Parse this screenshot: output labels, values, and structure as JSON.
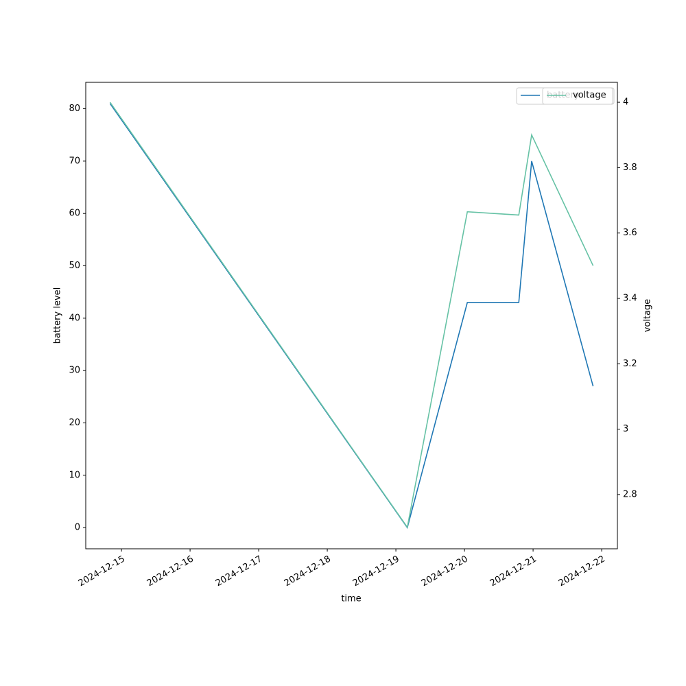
{
  "chart_data": {
    "type": "line",
    "x_label": "time",
    "y_label": "battery level",
    "y2_label": "voltage",
    "x": [
      "2024-12-14T20:00",
      "2024-12-19T04:00",
      "2024-12-20T01:00",
      "2024-12-20T19:00",
      "2024-12-20T23:30",
      "2024-12-21T21:00"
    ],
    "series": [
      {
        "name": "battery",
        "color": "#1f77b4",
        "values": [
          81,
          0,
          43,
          43,
          70,
          27
        ]
      },
      {
        "name": "voltage",
        "color": "#66c2a5",
        "axis": "y2",
        "values": [
          4.0,
          2.7,
          3.665,
          3.655,
          3.9,
          3.5
        ]
      }
    ],
    "xlim": [
      "2024-12-14T11:30",
      "2024-12-22T05:30"
    ],
    "xticks": [
      "2024-12-15",
      "2024-12-16",
      "2024-12-17",
      "2024-12-18",
      "2024-12-19",
      "2024-12-20",
      "2024-12-21",
      "2024-12-22"
    ],
    "ylim": [
      -4.05,
      85.05
    ],
    "yticks": [
      0,
      10,
      20,
      30,
      40,
      50,
      60,
      70,
      80
    ],
    "y2lim": [
      2.634,
      4.061
    ],
    "y2ticks": [
      2.8,
      3.0,
      3.2,
      3.4,
      3.6,
      3.8,
      4.0
    ],
    "legend": "upper right",
    "grid": false
  }
}
